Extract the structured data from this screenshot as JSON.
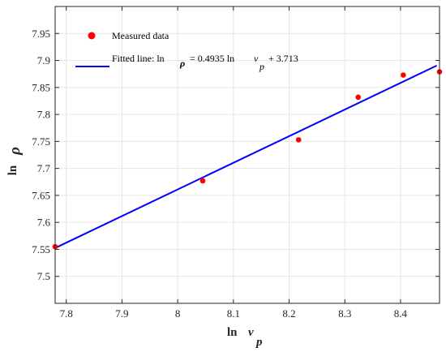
{
  "chart_data": {
    "type": "scatter",
    "xlim": [
      7.78,
      8.47
    ],
    "ylim": [
      7.45,
      8.0
    ],
    "xticks": [
      7.8,
      7.9,
      8.0,
      8.1,
      8.2,
      8.3,
      8.4
    ],
    "xtick_labels": [
      "7.8",
      "7.9",
      "8",
      "8.1",
      "8.2",
      "8.3",
      "8.4"
    ],
    "yticks": [
      7.5,
      7.55,
      7.6,
      7.65,
      7.7,
      7.75,
      7.8,
      7.85,
      7.9,
      7.95
    ],
    "ytick_labels": [
      "7.5",
      "7.55",
      "7.6",
      "7.65",
      "7.7",
      "7.75",
      "7.8",
      "7.85",
      "7.9",
      "7.95"
    ],
    "grid": true,
    "legend_position": "top-left",
    "xlabel": {
      "prefix": "ln",
      "symbol": "v",
      "subscript": "p"
    },
    "ylabel": {
      "prefix": "ln",
      "symbol": "ρ"
    },
    "series": [
      {
        "name": "Measured data",
        "kind": "scatter",
        "color": "#ff0000",
        "x": [
          7.78,
          8.045,
          8.217,
          8.324,
          8.405,
          8.47
        ],
        "y": [
          7.555,
          7.677,
          7.753,
          7.832,
          7.873,
          7.879
        ]
      },
      {
        "name": "Fitted line",
        "kind": "line",
        "color": "#0000ff",
        "slope": 0.4935,
        "intercept": 3.713,
        "legend": {
          "prefix": "Fitted line: ln",
          "symbol": "ρ",
          "mid": "= 0.4935 ln",
          "symbol2": "v",
          "subscript": "p",
          "suffix": "+ 3.713"
        }
      }
    ]
  }
}
